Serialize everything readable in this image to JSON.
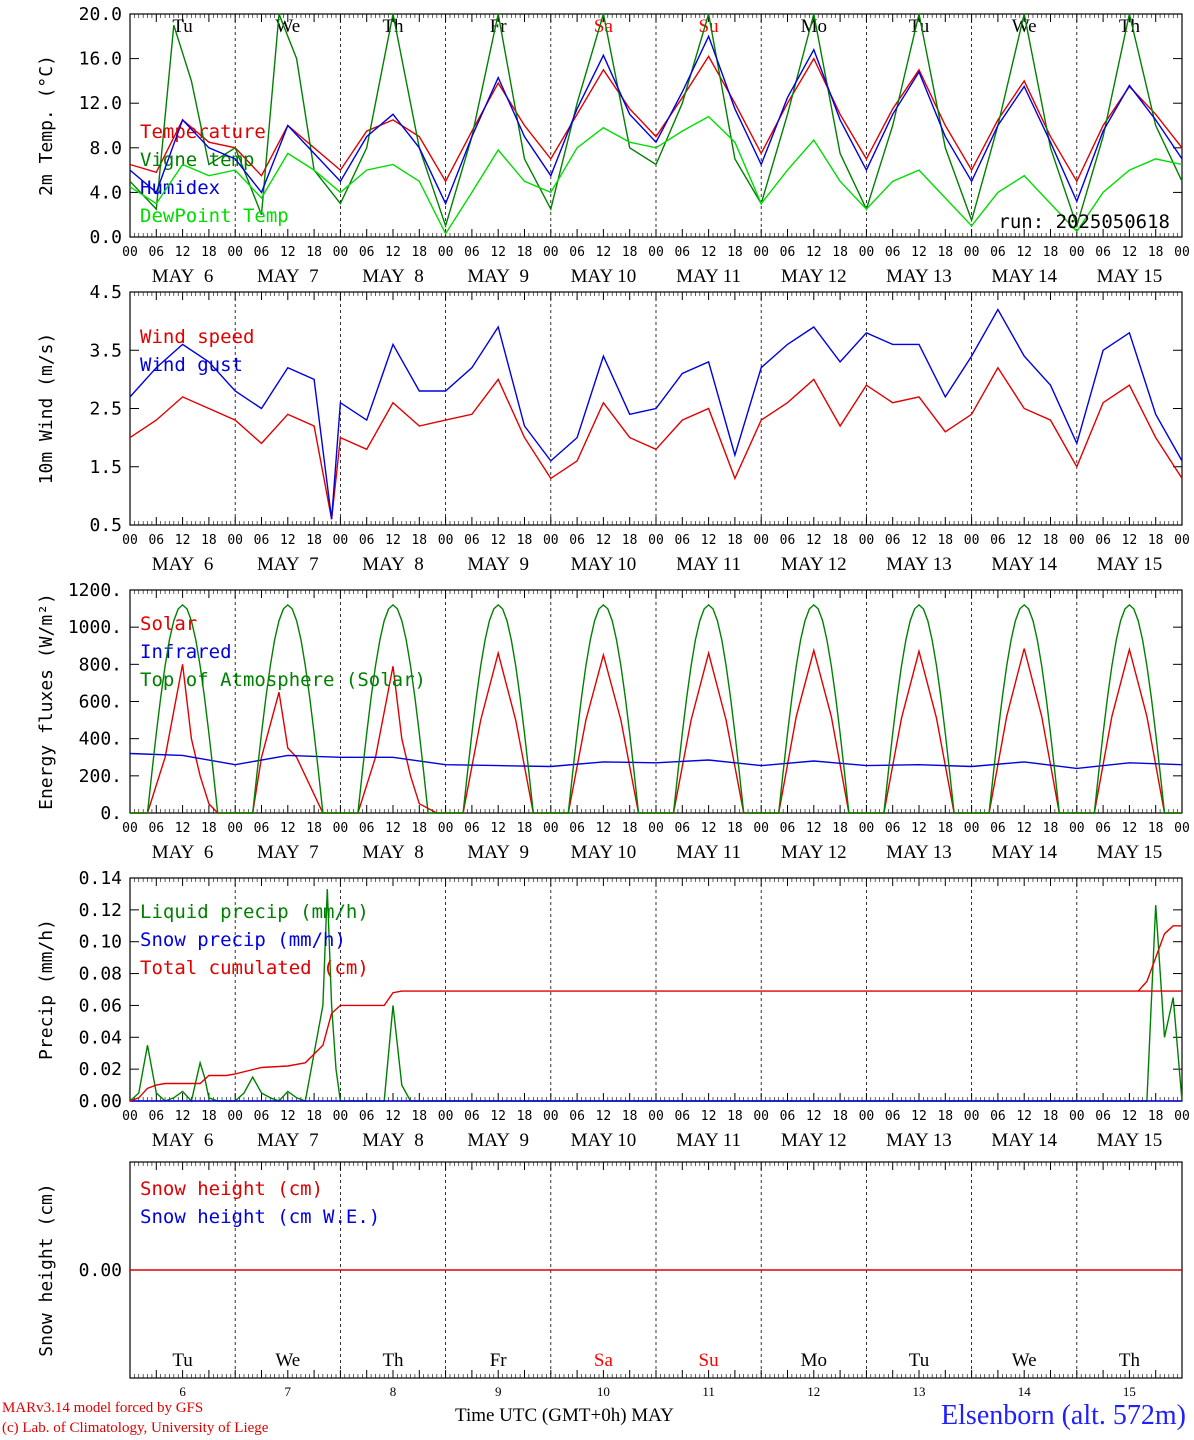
{
  "station": "Elsenborn (alt. 572m)",
  "credits": [
    "MARv3.14 model forced by GFS",
    "(c) Lab. of Climatology, University of Liege"
  ],
  "xaxis_title": "Time UTC (GMT+0h) MAY",
  "run_label": "run: 2025050618",
  "days": [
    {
      "weekday": "Tu",
      "date": "MAY  6",
      "num": "6",
      "weekend": false
    },
    {
      "weekday": "We",
      "date": "MAY  7",
      "num": "7",
      "weekend": false
    },
    {
      "weekday": "Th",
      "date": "MAY  8",
      "num": "8",
      "weekend": false
    },
    {
      "weekday": "Fr",
      "date": "MAY  9",
      "num": "9",
      "weekend": false
    },
    {
      "weekday": "Sa",
      "date": "MAY 10",
      "num": "10",
      "weekend": true
    },
    {
      "weekday": "Su",
      "date": "MAY 11",
      "num": "11",
      "weekend": true
    },
    {
      "weekday": "Mo",
      "date": "MAY 12",
      "num": "12",
      "weekend": false
    },
    {
      "weekday": "Tu",
      "date": "MAY 13",
      "num": "13",
      "weekend": false
    },
    {
      "weekday": "We",
      "date": "MAY 14",
      "num": "14",
      "weekend": false
    },
    {
      "weekday": "Th",
      "date": "MAY 15",
      "num": "15",
      "weekend": false
    }
  ],
  "hour_ticks": [
    "00",
    "06",
    "12",
    "18"
  ],
  "colors": {
    "red": "#e00000",
    "green": "#008000",
    "blue": "#0000e0",
    "lightgreen": "#00dd00",
    "weekend": "#ff0000",
    "axis": "#000000"
  },
  "chart_data": [
    {
      "type": "line",
      "ylabel": "2m Temp. (°C)",
      "ylim": [
        0,
        20
      ],
      "yticks": [
        "0.0",
        "4.0",
        "8.0",
        "12.0",
        "16.0",
        "20.0"
      ],
      "x_unit": "hours since MAY 6 00 UTC",
      "series": [
        {
          "name": "Temperature",
          "color": "red",
          "x": [
            0,
            6,
            12,
            18,
            24,
            30,
            36,
            42,
            48,
            54,
            60,
            66,
            72,
            78,
            84,
            90,
            96,
            102,
            108,
            114,
            120,
            126,
            132,
            138,
            144,
            150,
            156,
            162,
            168,
            174,
            180,
            186,
            192,
            198,
            204,
            210,
            216,
            222,
            228,
            234,
            240
          ],
          "y": [
            6.5,
            5.8,
            10.5,
            8.5,
            8.0,
            5.5,
            10.0,
            8.0,
            6.0,
            9.5,
            10.5,
            9.0,
            5.0,
            9.5,
            13.8,
            10.0,
            7.0,
            11.0,
            15.0,
            11.5,
            9.0,
            12.5,
            16.2,
            12.0,
            7.5,
            12.0,
            16.0,
            11.0,
            7.0,
            11.5,
            15.0,
            10.0,
            6.0,
            10.5,
            14.0,
            9.0,
            5.0,
            10.0,
            13.5,
            11.0,
            8.0
          ]
        },
        {
          "name": "Vigne temp",
          "color": "green",
          "x": [
            0,
            6,
            10,
            14,
            18,
            24,
            30,
            34,
            38,
            42,
            48,
            54,
            60,
            66,
            72,
            78,
            84,
            90,
            96,
            102,
            108,
            114,
            120,
            126,
            132,
            138,
            144,
            150,
            156,
            162,
            168,
            174,
            180,
            186,
            192,
            198,
            204,
            210,
            216,
            222,
            228,
            234,
            240
          ],
          "y": [
            5.0,
            2.5,
            19.0,
            14.0,
            6.5,
            8.0,
            2.0,
            20.0,
            16.0,
            6.0,
            3.0,
            8.0,
            20.0,
            8.0,
            1.0,
            9.0,
            20.0,
            7.0,
            2.5,
            12.0,
            20.0,
            8.0,
            6.5,
            12.0,
            20.0,
            7.0,
            3.0,
            11.0,
            20.0,
            7.5,
            2.5,
            10.0,
            20.0,
            8.0,
            1.5,
            10.0,
            20.0,
            8.0,
            1.0,
            9.0,
            20.0,
            10.0,
            5.0
          ]
        },
        {
          "name": "Humidex",
          "color": "blue",
          "x": [
            0,
            6,
            12,
            18,
            24,
            30,
            36,
            42,
            48,
            54,
            60,
            66,
            72,
            78,
            84,
            90,
            96,
            102,
            108,
            114,
            120,
            126,
            132,
            138,
            144,
            150,
            156,
            162,
            168,
            174,
            180,
            186,
            192,
            198,
            204,
            210,
            216,
            222,
            228,
            234,
            240
          ],
          "y": [
            6.0,
            4.0,
            10.5,
            8.0,
            7.0,
            4.0,
            10.0,
            7.5,
            5.0,
            9.0,
            11.0,
            8.0,
            3.0,
            9.0,
            14.3,
            9.0,
            5.5,
            11.5,
            16.3,
            11.0,
            8.5,
            13.0,
            18.0,
            11.5,
            6.5,
            12.5,
            16.8,
            10.5,
            6.0,
            11.0,
            14.8,
            9.0,
            5.0,
            10.0,
            13.5,
            8.5,
            3.2,
            9.5,
            13.6,
            10.5,
            7.0
          ]
        },
        {
          "name": "DewPoint Temp",
          "color": "lightgreen",
          "x": [
            0,
            6,
            12,
            18,
            24,
            30,
            36,
            42,
            48,
            54,
            60,
            66,
            72,
            78,
            84,
            90,
            96,
            102,
            108,
            114,
            120,
            126,
            132,
            138,
            144,
            150,
            156,
            162,
            168,
            174,
            180,
            186,
            192,
            198,
            204,
            210,
            216,
            222,
            228,
            234,
            240
          ],
          "y": [
            4.5,
            3.0,
            6.5,
            5.5,
            6.0,
            3.5,
            7.5,
            6.0,
            4.0,
            6.0,
            6.5,
            5.0,
            0.3,
            4.0,
            7.8,
            5.0,
            4.0,
            8.0,
            9.8,
            8.5,
            8.0,
            9.5,
            10.8,
            8.5,
            3.0,
            6.0,
            8.7,
            5.0,
            2.5,
            5.0,
            6.0,
            3.5,
            1.0,
            4.0,
            5.5,
            3.0,
            0.5,
            4.0,
            6.0,
            7.0,
            6.5
          ]
        }
      ]
    },
    {
      "type": "line",
      "ylabel": "10m Wind (m/s)",
      "ylim": [
        0.5,
        4.5
      ],
      "yticks": [
        "0.5",
        "1.5",
        "2.5",
        "3.5",
        "4.5"
      ],
      "x_unit": "hours since MAY 6 00 UTC",
      "series": [
        {
          "name": "Wind speed",
          "color": "red",
          "x": [
            0,
            6,
            12,
            18,
            24,
            30,
            36,
            42,
            46,
            48,
            54,
            60,
            66,
            72,
            78,
            84,
            90,
            96,
            102,
            108,
            114,
            120,
            126,
            132,
            138,
            144,
            150,
            156,
            162,
            168,
            174,
            180,
            186,
            192,
            198,
            204,
            210,
            216,
            222,
            228,
            234,
            240
          ],
          "y": [
            2.0,
            2.3,
            2.7,
            2.5,
            2.3,
            1.9,
            2.4,
            2.2,
            0.6,
            2.0,
            1.8,
            2.6,
            2.2,
            2.3,
            2.4,
            3.0,
            2.0,
            1.3,
            1.6,
            2.6,
            2.0,
            1.8,
            2.3,
            2.5,
            1.3,
            2.3,
            2.6,
            3.0,
            2.2,
            2.9,
            2.6,
            2.7,
            2.1,
            2.4,
            3.2,
            2.5,
            2.3,
            1.5,
            2.6,
            2.9,
            2.0,
            1.3
          ]
        },
        {
          "name": "Wind gust",
          "color": "blue",
          "x": [
            0,
            6,
            12,
            18,
            24,
            30,
            36,
            42,
            46,
            48,
            54,
            60,
            66,
            72,
            78,
            84,
            90,
            96,
            102,
            108,
            114,
            120,
            126,
            132,
            138,
            144,
            150,
            156,
            162,
            168,
            174,
            180,
            186,
            192,
            198,
            204,
            210,
            216,
            222,
            228,
            234,
            240
          ],
          "y": [
            2.7,
            3.2,
            3.6,
            3.3,
            2.8,
            2.5,
            3.2,
            3.0,
            0.6,
            2.6,
            2.3,
            3.6,
            2.8,
            2.8,
            3.2,
            3.9,
            2.2,
            1.6,
            2.0,
            3.4,
            2.4,
            2.5,
            3.1,
            3.3,
            1.7,
            3.2,
            3.6,
            3.9,
            3.3,
            3.8,
            3.6,
            3.6,
            2.7,
            3.4,
            4.2,
            3.4,
            2.9,
            1.9,
            3.5,
            3.8,
            2.4,
            1.6
          ]
        }
      ]
    },
    {
      "type": "line",
      "ylabel": "Energy fluxes (W/m²)",
      "ylim": [
        0,
        1200
      ],
      "yticks": [
        "0.",
        "200.",
        "400.",
        "600.",
        "800.",
        "1000.",
        "1200."
      ],
      "x_unit": "hours since MAY 6 00 UTC",
      "series": [
        {
          "name": "Solar",
          "color": "red",
          "x": [
            0,
            4,
            8,
            12,
            14,
            16,
            18,
            20,
            24,
            28,
            30,
            34,
            36,
            38,
            42,
            44,
            48,
            52,
            56,
            60,
            62,
            64,
            66,
            70,
            72,
            76,
            80,
            84,
            88,
            92,
            96,
            100,
            104,
            108,
            112,
            116,
            120,
            124,
            128,
            132,
            136,
            140,
            144,
            148,
            152,
            156,
            160,
            164,
            168,
            172,
            176,
            180,
            184,
            188,
            192,
            196,
            200,
            204,
            208,
            212,
            216,
            220,
            224,
            228,
            232,
            236,
            240
          ],
          "y": [
            0,
            0,
            300,
            800,
            400,
            200,
            50,
            0,
            0,
            0,
            300,
            650,
            350,
            300,
            100,
            0,
            0,
            0,
            300,
            790,
            400,
            200,
            50,
            0,
            0,
            0,
            500,
            860,
            500,
            0,
            0,
            0,
            500,
            850,
            500,
            0,
            0,
            0,
            500,
            860,
            500,
            0,
            0,
            0,
            520,
            875,
            520,
            0,
            0,
            0,
            510,
            870,
            510,
            0,
            0,
            0,
            520,
            885,
            520,
            0,
            0,
            0,
            520,
            880,
            520,
            0,
            0
          ]
        },
        {
          "name": "Infrared",
          "color": "blue",
          "x": [
            0,
            12,
            24,
            36,
            48,
            60,
            72,
            84,
            96,
            108,
            120,
            132,
            144,
            156,
            168,
            180,
            192,
            204,
            216,
            228,
            240
          ],
          "y": [
            320,
            310,
            260,
            310,
            300,
            300,
            260,
            255,
            250,
            275,
            270,
            285,
            255,
            280,
            255,
            260,
            250,
            275,
            240,
            270,
            260
          ]
        },
        {
          "name": "Top of Atmosphere (Solar)",
          "color": "green",
          "x": [],
          "y": [],
          "peak": 1120,
          "sunrise_h": 4,
          "sunset_h": 20
        }
      ]
    },
    {
      "type": "line",
      "ylabel": "Precip (mm/h)",
      "ylim": [
        0,
        0.14
      ],
      "yticks": [
        "0.00",
        "0.02",
        "0.04",
        "0.06",
        "0.08",
        "0.10",
        "0.12",
        "0.14"
      ],
      "x_unit": "hours since MAY 6 00 UTC",
      "series": [
        {
          "name": "Liquid precip (mm/h)",
          "color": "green",
          "x": [
            0,
            2,
            4,
            6,
            8,
            10,
            12,
            14,
            16,
            17,
            18,
            20,
            24,
            26,
            28,
            30,
            32,
            34,
            36,
            38,
            40,
            42,
            44,
            45,
            46,
            47,
            48,
            49,
            50,
            56,
            58,
            60,
            62,
            64,
            66,
            70,
            232,
            234,
            236,
            238,
            240
          ],
          "y": [
            0,
            0.005,
            0.035,
            0.005,
            0,
            0.002,
            0.006,
            0,
            0.024,
            0.015,
            0.002,
            0,
            0,
            0.005,
            0.015,
            0.005,
            0.002,
            0,
            0.006,
            0.002,
            0,
            0.03,
            0.06,
            0.133,
            0.06,
            0.02,
            0,
            0,
            0,
            0,
            0,
            0.06,
            0.01,
            0,
            0,
            0,
            0,
            0.123,
            0.04,
            0.065,
            0
          ]
        },
        {
          "name": "Snow precip (mm/h)",
          "color": "blue",
          "x": [
            0,
            240
          ],
          "y": [
            0,
            0
          ]
        },
        {
          "name": "Total cumulated (cm)",
          "color": "red",
          "x": [
            0,
            2,
            4,
            6,
            8,
            12,
            16,
            18,
            22,
            24,
            30,
            36,
            40,
            44,
            46,
            48,
            54,
            58,
            60,
            62,
            240,
            228,
            230,
            232,
            234,
            236,
            238,
            240
          ],
          "y": [
            0,
            0.002,
            0.008,
            0.01,
            0.011,
            0.011,
            0.011,
            0.016,
            0.016,
            0.017,
            0.021,
            0.022,
            0.024,
            0.035,
            0.055,
            0.06,
            0.06,
            0.06,
            0.068,
            0.069,
            0.069,
            0.069,
            0.069,
            0.075,
            0.09,
            0.105,
            0.11,
            0.11
          ]
        }
      ]
    },
    {
      "type": "line",
      "ylabel": "Snow height (cm)",
      "ylim": [
        -1,
        1
      ],
      "yticks": [
        "0.00"
      ],
      "x_unit": "hours since MAY 6 00 UTC",
      "series": [
        {
          "name": "Snow height (cm)",
          "color": "red",
          "x": [
            0,
            240
          ],
          "y": [
            0,
            0
          ]
        },
        {
          "name": "Snow height (cm W.E.)",
          "color": "blue",
          "x": [],
          "y": []
        }
      ]
    }
  ]
}
